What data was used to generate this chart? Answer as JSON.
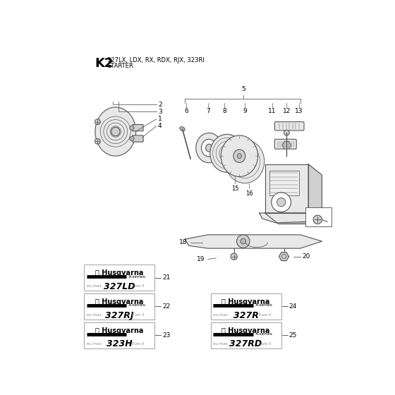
{
  "title_bold": "K2",
  "title_sub": "327LX, LDX, RX, RDX, RJX, 323RI",
  "title_sub2": "STARTER",
  "bg_color": "#ffffff",
  "fig_width": 5.6,
  "fig_height": 5.6,
  "part_color": "#555555",
  "fill_light": "#e8e8e8",
  "fill_mid": "#d0d0d0",
  "fill_dark": "#b8b8b8"
}
